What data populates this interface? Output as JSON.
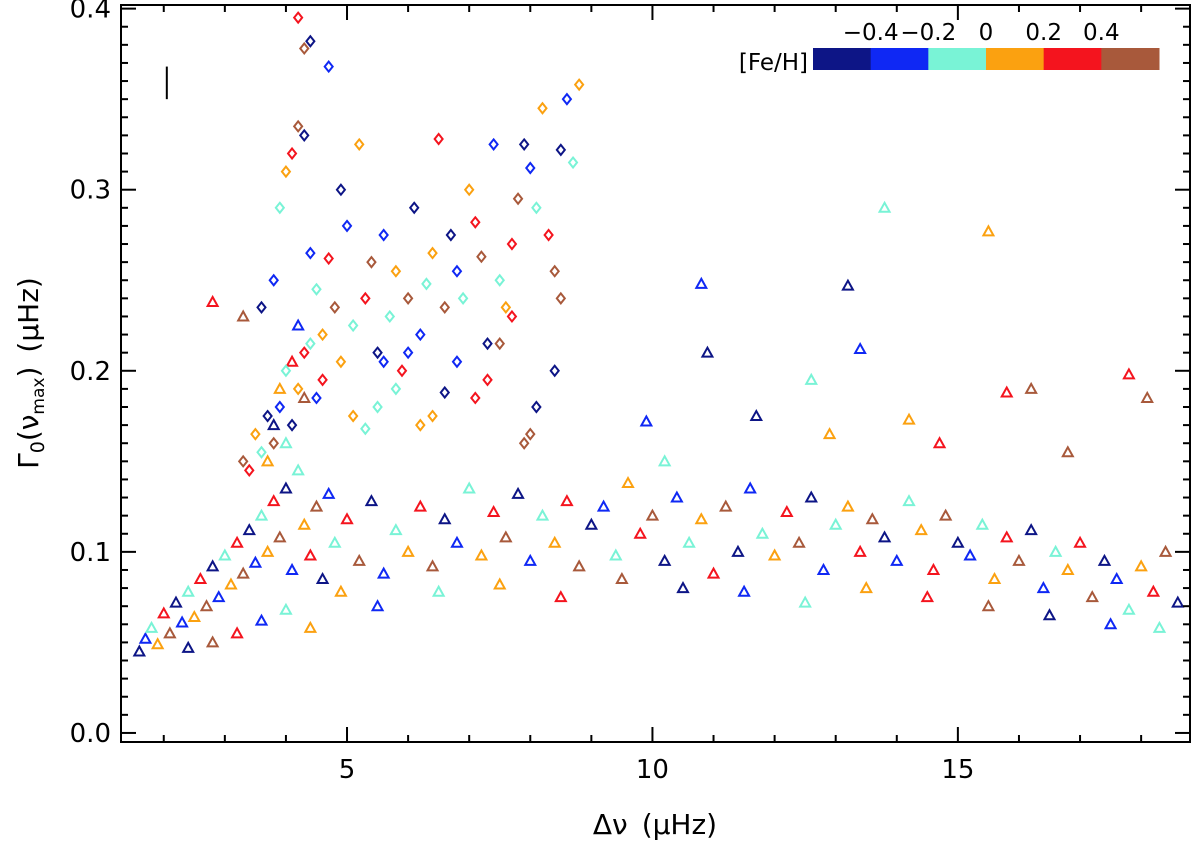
{
  "chart_data": {
    "type": "scatter",
    "title": "",
    "xlabel": {
      "main": "Δν",
      "unit": "(μHz)"
    },
    "ylabel": {
      "main": "Γ",
      "sub0": "0",
      "open": "(ν",
      "subscript": "max",
      "close": ")",
      "unit": "(μHz)"
    },
    "xlim": [
      1.3,
      18.8
    ],
    "ylim": [
      -0.005,
      0.402
    ],
    "x_ticks": [
      5,
      10,
      15
    ],
    "x_tick_labels": [
      "5",
      "10",
      "15"
    ],
    "y_ticks": [
      0.0,
      0.1,
      0.2,
      0.3,
      0.4
    ],
    "y_tick_labels": [
      "0.0",
      "0.1",
      "0.2",
      "0.3",
      "0.4"
    ],
    "grid": false,
    "error_bar": {
      "x": 2.05,
      "y_low": 0.35,
      "y_high": 0.368
    },
    "colorbar": {
      "label": "[Fe/H]",
      "placement": "top-right",
      "tick_labels": [
        "−0.4",
        "−0.2",
        "0",
        "0.2",
        "0.4"
      ],
      "colors": [
        "#0d1586",
        "#0f28f4",
        "#79f3d6",
        "#fba110",
        "#f4141e",
        "#a8593b"
      ]
    },
    "series": [
      {
        "marker": "triangle",
        "description": "triangles",
        "points": [
          [
            1.6,
            0.045
          ],
          [
            1.7,
            0.052
          ],
          [
            1.8,
            0.058
          ],
          [
            1.9,
            0.049
          ],
          [
            2.0,
            0.066
          ],
          [
            2.1,
            0.055
          ],
          [
            2.2,
            0.072
          ],
          [
            2.3,
            0.061
          ],
          [
            2.4,
            0.078
          ],
          [
            2.5,
            0.064
          ],
          [
            2.6,
            0.085
          ],
          [
            2.7,
            0.07
          ],
          [
            2.8,
            0.092
          ],
          [
            2.9,
            0.075
          ],
          [
            3.0,
            0.098
          ],
          [
            3.1,
            0.082
          ],
          [
            3.2,
            0.105
          ],
          [
            3.3,
            0.088
          ],
          [
            3.4,
            0.112
          ],
          [
            3.5,
            0.094
          ],
          [
            3.6,
            0.12
          ],
          [
            3.7,
            0.1
          ],
          [
            3.8,
            0.128
          ],
          [
            3.9,
            0.108
          ],
          [
            4.0,
            0.135
          ],
          [
            4.1,
            0.09
          ],
          [
            4.2,
            0.145
          ],
          [
            4.3,
            0.115
          ],
          [
            4.4,
            0.098
          ],
          [
            4.5,
            0.125
          ],
          [
            4.6,
            0.085
          ],
          [
            4.7,
            0.132
          ],
          [
            4.8,
            0.105
          ],
          [
            4.9,
            0.078
          ],
          [
            5.0,
            0.118
          ],
          [
            5.2,
            0.095
          ],
          [
            5.4,
            0.128
          ],
          [
            5.6,
            0.088
          ],
          [
            5.8,
            0.112
          ],
          [
            6.0,
            0.1
          ],
          [
            6.2,
            0.125
          ],
          [
            6.4,
            0.092
          ],
          [
            6.6,
            0.118
          ],
          [
            6.8,
            0.105
          ],
          [
            7.0,
            0.135
          ],
          [
            7.2,
            0.098
          ],
          [
            7.4,
            0.122
          ],
          [
            7.6,
            0.108
          ],
          [
            7.8,
            0.132
          ],
          [
            8.0,
            0.095
          ],
          [
            8.2,
            0.12
          ],
          [
            8.4,
            0.105
          ],
          [
            8.6,
            0.128
          ],
          [
            8.8,
            0.092
          ],
          [
            9.0,
            0.115
          ],
          [
            9.2,
            0.125
          ],
          [
            9.4,
            0.098
          ],
          [
            9.6,
            0.138
          ],
          [
            9.8,
            0.11
          ],
          [
            10.0,
            0.12
          ],
          [
            10.2,
            0.095
          ],
          [
            10.4,
            0.13
          ],
          [
            10.6,
            0.105
          ],
          [
            10.8,
            0.118
          ],
          [
            11.0,
            0.088
          ],
          [
            11.2,
            0.125
          ],
          [
            11.4,
            0.1
          ],
          [
            11.6,
            0.135
          ],
          [
            11.8,
            0.11
          ],
          [
            12.0,
            0.098
          ],
          [
            12.2,
            0.122
          ],
          [
            12.4,
            0.105
          ],
          [
            12.6,
            0.13
          ],
          [
            12.8,
            0.09
          ],
          [
            13.0,
            0.115
          ],
          [
            13.2,
            0.125
          ],
          [
            13.4,
            0.1
          ],
          [
            13.6,
            0.118
          ],
          [
            13.8,
            0.108
          ],
          [
            14.0,
            0.095
          ],
          [
            14.2,
            0.128
          ],
          [
            14.4,
            0.112
          ],
          [
            14.6,
            0.09
          ],
          [
            14.8,
            0.12
          ],
          [
            15.0,
            0.105
          ],
          [
            15.2,
            0.098
          ],
          [
            15.4,
            0.115
          ],
          [
            15.6,
            0.085
          ],
          [
            15.8,
            0.108
          ],
          [
            16.0,
            0.095
          ],
          [
            16.2,
            0.112
          ],
          [
            16.4,
            0.08
          ],
          [
            16.6,
            0.1
          ],
          [
            16.8,
            0.09
          ],
          [
            17.0,
            0.105
          ],
          [
            17.2,
            0.075
          ],
          [
            17.4,
            0.095
          ],
          [
            17.6,
            0.085
          ],
          [
            17.8,
            0.068
          ],
          [
            18.0,
            0.092
          ],
          [
            18.2,
            0.078
          ],
          [
            18.4,
            0.1
          ],
          [
            18.6,
            0.072
          ],
          [
            3.6,
            0.062
          ],
          [
            4.0,
            0.068
          ],
          [
            4.4,
            0.058
          ],
          [
            3.2,
            0.055
          ],
          [
            2.8,
            0.05
          ],
          [
            2.4,
            0.047
          ],
          [
            5.5,
            0.07
          ],
          [
            6.5,
            0.078
          ],
          [
            7.5,
            0.082
          ],
          [
            8.5,
            0.075
          ],
          [
            9.5,
            0.085
          ],
          [
            10.5,
            0.08
          ],
          [
            11.5,
            0.078
          ],
          [
            12.5,
            0.072
          ],
          [
            13.5,
            0.08
          ],
          [
            14.5,
            0.075
          ],
          [
            15.5,
            0.07
          ],
          [
            16.5,
            0.065
          ],
          [
            17.5,
            0.06
          ],
          [
            18.3,
            0.058
          ],
          [
            3.9,
            0.19
          ],
          [
            4.1,
            0.205
          ],
          [
            4.3,
            0.185
          ],
          [
            3.8,
            0.17
          ],
          [
            4.2,
            0.225
          ],
          [
            4.0,
            0.16
          ],
          [
            3.7,
            0.15
          ],
          [
            2.8,
            0.238
          ],
          [
            3.3,
            0.23
          ],
          [
            13.2,
            0.247
          ],
          [
            10.8,
            0.248
          ],
          [
            13.8,
            0.29
          ],
          [
            15.5,
            0.277
          ],
          [
            17.8,
            0.198
          ],
          [
            16.2,
            0.19
          ],
          [
            10.9,
            0.21
          ],
          [
            13.4,
            0.212
          ],
          [
            12.6,
            0.195
          ],
          [
            14.2,
            0.173
          ],
          [
            15.8,
            0.188
          ],
          [
            18.1,
            0.185
          ],
          [
            11.7,
            0.175
          ],
          [
            9.9,
            0.172
          ],
          [
            10.2,
            0.15
          ],
          [
            12.9,
            0.165
          ],
          [
            14.7,
            0.16
          ],
          [
            16.8,
            0.155
          ]
        ]
      },
      {
        "marker": "diamond",
        "description": "diamonds",
        "points": [
          [
            3.6,
            0.235
          ],
          [
            3.8,
            0.25
          ],
          [
            3.9,
            0.29
          ],
          [
            4.0,
            0.31
          ],
          [
            4.1,
            0.32
          ],
          [
            4.2,
            0.335
          ],
          [
            4.3,
            0.33
          ],
          [
            4.4,
            0.265
          ],
          [
            4.5,
            0.245
          ],
          [
            4.6,
            0.22
          ],
          [
            4.7,
            0.262
          ],
          [
            4.8,
            0.235
          ],
          [
            4.9,
            0.3
          ],
          [
            5.0,
            0.28
          ],
          [
            5.1,
            0.225
          ],
          [
            5.2,
            0.325
          ],
          [
            5.3,
            0.24
          ],
          [
            5.4,
            0.26
          ],
          [
            5.5,
            0.21
          ],
          [
            5.6,
            0.275
          ],
          [
            5.7,
            0.23
          ],
          [
            5.8,
            0.255
          ],
          [
            5.9,
            0.2
          ],
          [
            6.0,
            0.24
          ],
          [
            6.1,
            0.29
          ],
          [
            6.2,
            0.22
          ],
          [
            6.3,
            0.248
          ],
          [
            6.4,
            0.265
          ],
          [
            6.5,
            0.328
          ],
          [
            6.6,
            0.235
          ],
          [
            6.7,
            0.275
          ],
          [
            6.8,
            0.255
          ],
          [
            6.9,
            0.24
          ],
          [
            7.0,
            0.3
          ],
          [
            7.1,
            0.282
          ],
          [
            7.2,
            0.263
          ],
          [
            7.3,
            0.215
          ],
          [
            7.4,
            0.325
          ],
          [
            7.5,
            0.25
          ],
          [
            7.6,
            0.235
          ],
          [
            7.7,
            0.27
          ],
          [
            7.8,
            0.295
          ],
          [
            7.9,
            0.325
          ],
          [
            8.0,
            0.312
          ],
          [
            8.1,
            0.29
          ],
          [
            8.2,
            0.345
          ],
          [
            8.3,
            0.275
          ],
          [
            8.4,
            0.255
          ],
          [
            8.5,
            0.322
          ],
          [
            8.6,
            0.35
          ],
          [
            8.7,
            0.315
          ],
          [
            8.8,
            0.358
          ],
          [
            4.2,
            0.395
          ],
          [
            4.3,
            0.378
          ],
          [
            4.4,
            0.382
          ],
          [
            4.7,
            0.368
          ],
          [
            5.5,
            0.18
          ],
          [
            6.2,
            0.17
          ],
          [
            7.1,
            0.185
          ],
          [
            7.9,
            0.16
          ],
          [
            8.4,
            0.2
          ],
          [
            6.8,
            0.205
          ],
          [
            5.8,
            0.19
          ],
          [
            5.1,
            0.175
          ],
          [
            4.6,
            0.195
          ],
          [
            7.5,
            0.215
          ],
          [
            8.1,
            0.18
          ],
          [
            6.0,
            0.21
          ],
          [
            5.3,
            0.168
          ],
          [
            4.9,
            0.205
          ],
          [
            7.7,
            0.23
          ],
          [
            8.5,
            0.24
          ],
          [
            6.6,
            0.188
          ],
          [
            5.6,
            0.205
          ],
          [
            4.4,
            0.215
          ],
          [
            6.4,
            0.175
          ],
          [
            7.3,
            0.195
          ],
          [
            8.0,
            0.165
          ],
          [
            4.1,
            0.17
          ],
          [
            3.9,
            0.18
          ],
          [
            4.0,
            0.2
          ],
          [
            4.2,
            0.19
          ],
          [
            4.3,
            0.21
          ],
          [
            3.8,
            0.16
          ],
          [
            3.7,
            0.175
          ],
          [
            4.5,
            0.185
          ],
          [
            3.6,
            0.155
          ],
          [
            3.5,
            0.165
          ],
          [
            3.4,
            0.145
          ],
          [
            3.3,
            0.15
          ]
        ]
      }
    ]
  }
}
